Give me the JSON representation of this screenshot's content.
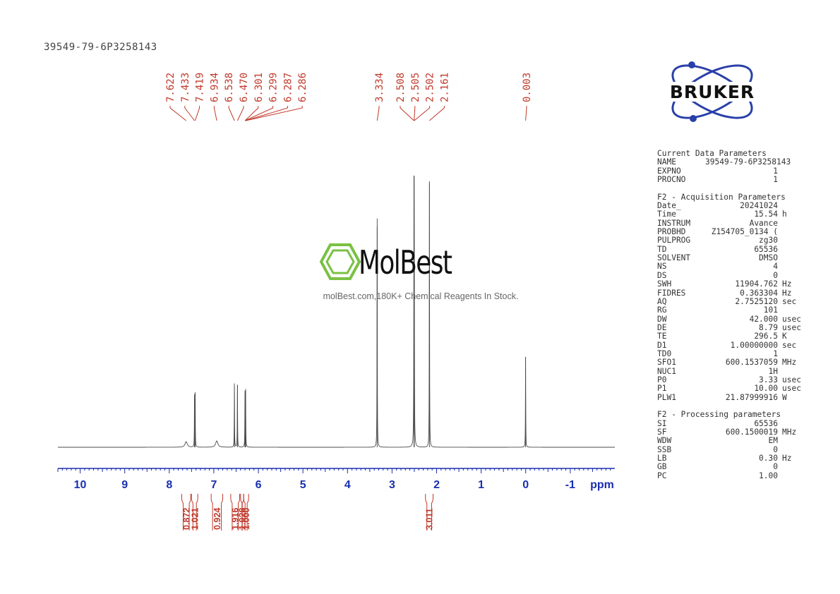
{
  "header": {
    "sample_id": "39549-79-6P3258143"
  },
  "watermark": {
    "brand": "MolBest",
    "tagline": "molBest.com,180K+ Chemical Reagents In Stock."
  },
  "logo": {
    "brand": "BRUKER"
  },
  "colors": {
    "peak_label": "#c0392b",
    "axis": "#1a2fb0",
    "spectrum": "#4a4a4a",
    "logo_blue": "#2a40a8",
    "molbest_green": "#7ac143"
  },
  "chart_data": {
    "type": "line",
    "xlabel": "ppm",
    "xlim": [
      10.5,
      -2.0
    ],
    "xaxis_reversed": true,
    "ticks": [
      {
        "value": 10,
        "label": "10"
      },
      {
        "value": 9,
        "label": "9"
      },
      {
        "value": 8,
        "label": "8"
      },
      {
        "value": 7,
        "label": "7"
      },
      {
        "value": 6,
        "label": "6"
      },
      {
        "value": 5,
        "label": "5"
      },
      {
        "value": 4,
        "label": "4"
      },
      {
        "value": 3,
        "label": "3"
      },
      {
        "value": 2,
        "label": "2"
      },
      {
        "value": 1,
        "label": "1"
      },
      {
        "value": 0,
        "label": "0"
      },
      {
        "value": -1,
        "label": "-1"
      }
    ],
    "y_relative_max": 1.0,
    "peaks": [
      {
        "ppm": 7.622,
        "height": 0.021,
        "width": 0.03
      },
      {
        "ppm": 7.433,
        "height": 0.2,
        "width": 0.0035
      },
      {
        "ppm": 7.419,
        "height": 0.2,
        "width": 0.0035
      },
      {
        "ppm": 6.934,
        "height": 0.024,
        "width": 0.03
      },
      {
        "ppm": 6.538,
        "height": 0.24,
        "width": 0.0035
      },
      {
        "ppm": 6.47,
        "height": 0.235,
        "width": 0.0035
      },
      {
        "ppm": 6.301,
        "height": 0.11,
        "width": 0.0035
      },
      {
        "ppm": 6.299,
        "height": 0.11,
        "width": 0.0035
      },
      {
        "ppm": 6.287,
        "height": 0.11,
        "width": 0.0035
      },
      {
        "ppm": 6.286,
        "height": 0.11,
        "width": 0.0035
      },
      {
        "ppm": 3.334,
        "height": 0.86,
        "width": 0.0035
      },
      {
        "ppm": 2.508,
        "height": 0.62,
        "width": 0.0035
      },
      {
        "ppm": 2.505,
        "height": 0.77,
        "width": 0.0035
      },
      {
        "ppm": 2.502,
        "height": 0.62,
        "width": 0.0035
      },
      {
        "ppm": 2.161,
        "height": 1.0,
        "width": 0.0035
      },
      {
        "ppm": 0.003,
        "height": 0.34,
        "width": 0.0035
      }
    ],
    "peak_labels": [
      "7.622",
      "7.433",
      "7.419",
      "6.934",
      "6.538",
      "6.470",
      "6.301",
      "6.299",
      "6.287",
      "6.286",
      "3.334",
      "2.508",
      "2.505",
      "2.502",
      "2.161",
      "0.003"
    ],
    "integrals": [
      {
        "from": 7.72,
        "to": 7.52,
        "value": "0.872"
      },
      {
        "from": 7.5,
        "to": 7.36,
        "value": "1.021"
      },
      {
        "from": 7.06,
        "to": 6.8,
        "value": "0.924"
      },
      {
        "from": 6.62,
        "to": 6.42,
        "value": "1.916"
      },
      {
        "from": 6.4,
        "to": 6.33,
        "value": "1.028"
      },
      {
        "from": 6.33,
        "to": 6.22,
        "value": "1.000"
      },
      {
        "from": 2.25,
        "to": 2.08,
        "value": "3.011"
      }
    ]
  },
  "parameters": [
    {
      "type": "section",
      "title": "Current Data Parameters"
    },
    {
      "key": "NAME",
      "value": "39549-79-6P3258143",
      "unit": ""
    },
    {
      "key": "EXPNO",
      "value": "1",
      "unit": ""
    },
    {
      "key": "PROCNO",
      "value": "1",
      "unit": ""
    },
    {
      "type": "gap"
    },
    {
      "type": "section",
      "title": "F2 - Acquisition Parameters"
    },
    {
      "key": "Date_",
      "value": "20241024",
      "unit": ""
    },
    {
      "key": "Time",
      "value": "15.54",
      "unit": "h"
    },
    {
      "key": "INSTRUM",
      "value": "Avance",
      "unit": ""
    },
    {
      "key": "PROBHD",
      "value": "Z154705_0134 (",
      "unit": ""
    },
    {
      "key": "PULPROG",
      "value": "zg30",
      "unit": ""
    },
    {
      "key": "TD",
      "value": "65536",
      "unit": ""
    },
    {
      "key": "SOLVENT",
      "value": "DMSO",
      "unit": ""
    },
    {
      "key": "NS",
      "value": "4",
      "unit": ""
    },
    {
      "key": "DS",
      "value": "0",
      "unit": ""
    },
    {
      "key": "SWH",
      "value": "11904.762",
      "unit": "Hz"
    },
    {
      "key": "FIDRES",
      "value": "0.363304",
      "unit": "Hz"
    },
    {
      "key": "AQ",
      "value": "2.7525120",
      "unit": "sec"
    },
    {
      "key": "RG",
      "value": "101",
      "unit": ""
    },
    {
      "key": "DW",
      "value": "42.000",
      "unit": "usec"
    },
    {
      "key": "DE",
      "value": "8.79",
      "unit": "usec"
    },
    {
      "key": "TE",
      "value": "296.5",
      "unit": "K"
    },
    {
      "key": "D1",
      "value": "1.00000000",
      "unit": "sec"
    },
    {
      "key": "TD0",
      "value": "1",
      "unit": ""
    },
    {
      "key": "SFO1",
      "value": "600.1537059",
      "unit": "MHz"
    },
    {
      "key": "NUC1",
      "value": "1H",
      "unit": ""
    },
    {
      "key": "P0",
      "value": "3.33",
      "unit": "usec"
    },
    {
      "key": "P1",
      "value": "10.00",
      "unit": "usec"
    },
    {
      "key": "PLW1",
      "value": "21.87999916",
      "unit": "W"
    },
    {
      "type": "gap"
    },
    {
      "type": "section",
      "title": "F2 - Processing parameters"
    },
    {
      "key": "SI",
      "value": "65536",
      "unit": ""
    },
    {
      "key": "SF",
      "value": "600.1500019",
      "unit": "MHz"
    },
    {
      "key": "WDW",
      "value": "EM",
      "unit": ""
    },
    {
      "key": "SSB",
      "value": "0",
      "unit": ""
    },
    {
      "key": "LB",
      "value": "0.30",
      "unit": "Hz"
    },
    {
      "key": "GB",
      "value": "0",
      "unit": ""
    },
    {
      "key": "PC",
      "value": "1.00",
      "unit": ""
    }
  ]
}
